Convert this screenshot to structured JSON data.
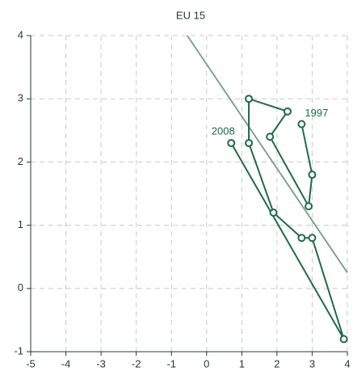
{
  "chart_data": {
    "type": "line",
    "title": "EU 15",
    "series": [
      {
        "color": "#1e6b47",
        "x": [
          2.7,
          3.0,
          2.9,
          1.8,
          2.3,
          1.2,
          1.2,
          1.9,
          2.7,
          3.0,
          3.9,
          0.7
        ],
        "values": [
          2.6,
          1.8,
          1.3,
          2.4,
          2.8,
          3.0,
          2.3,
          1.2,
          0.8,
          0.8,
          -0.8,
          2.3
        ]
      }
    ],
    "trendline": {
      "color": "#6f9e88",
      "x": [
        -0.55,
        4
      ],
      "y": [
        4,
        0.25
      ]
    },
    "annotations": [
      "1997",
      "2008"
    ],
    "xlim": [
      -5,
      4
    ],
    "xticks": [
      -5,
      -4,
      -3,
      -2,
      -1,
      0,
      1,
      2,
      3,
      4
    ],
    "ylim": [
      -1,
      4
    ],
    "yticks": [
      -1,
      0,
      1,
      2,
      3,
      4
    ],
    "grid": true
  }
}
